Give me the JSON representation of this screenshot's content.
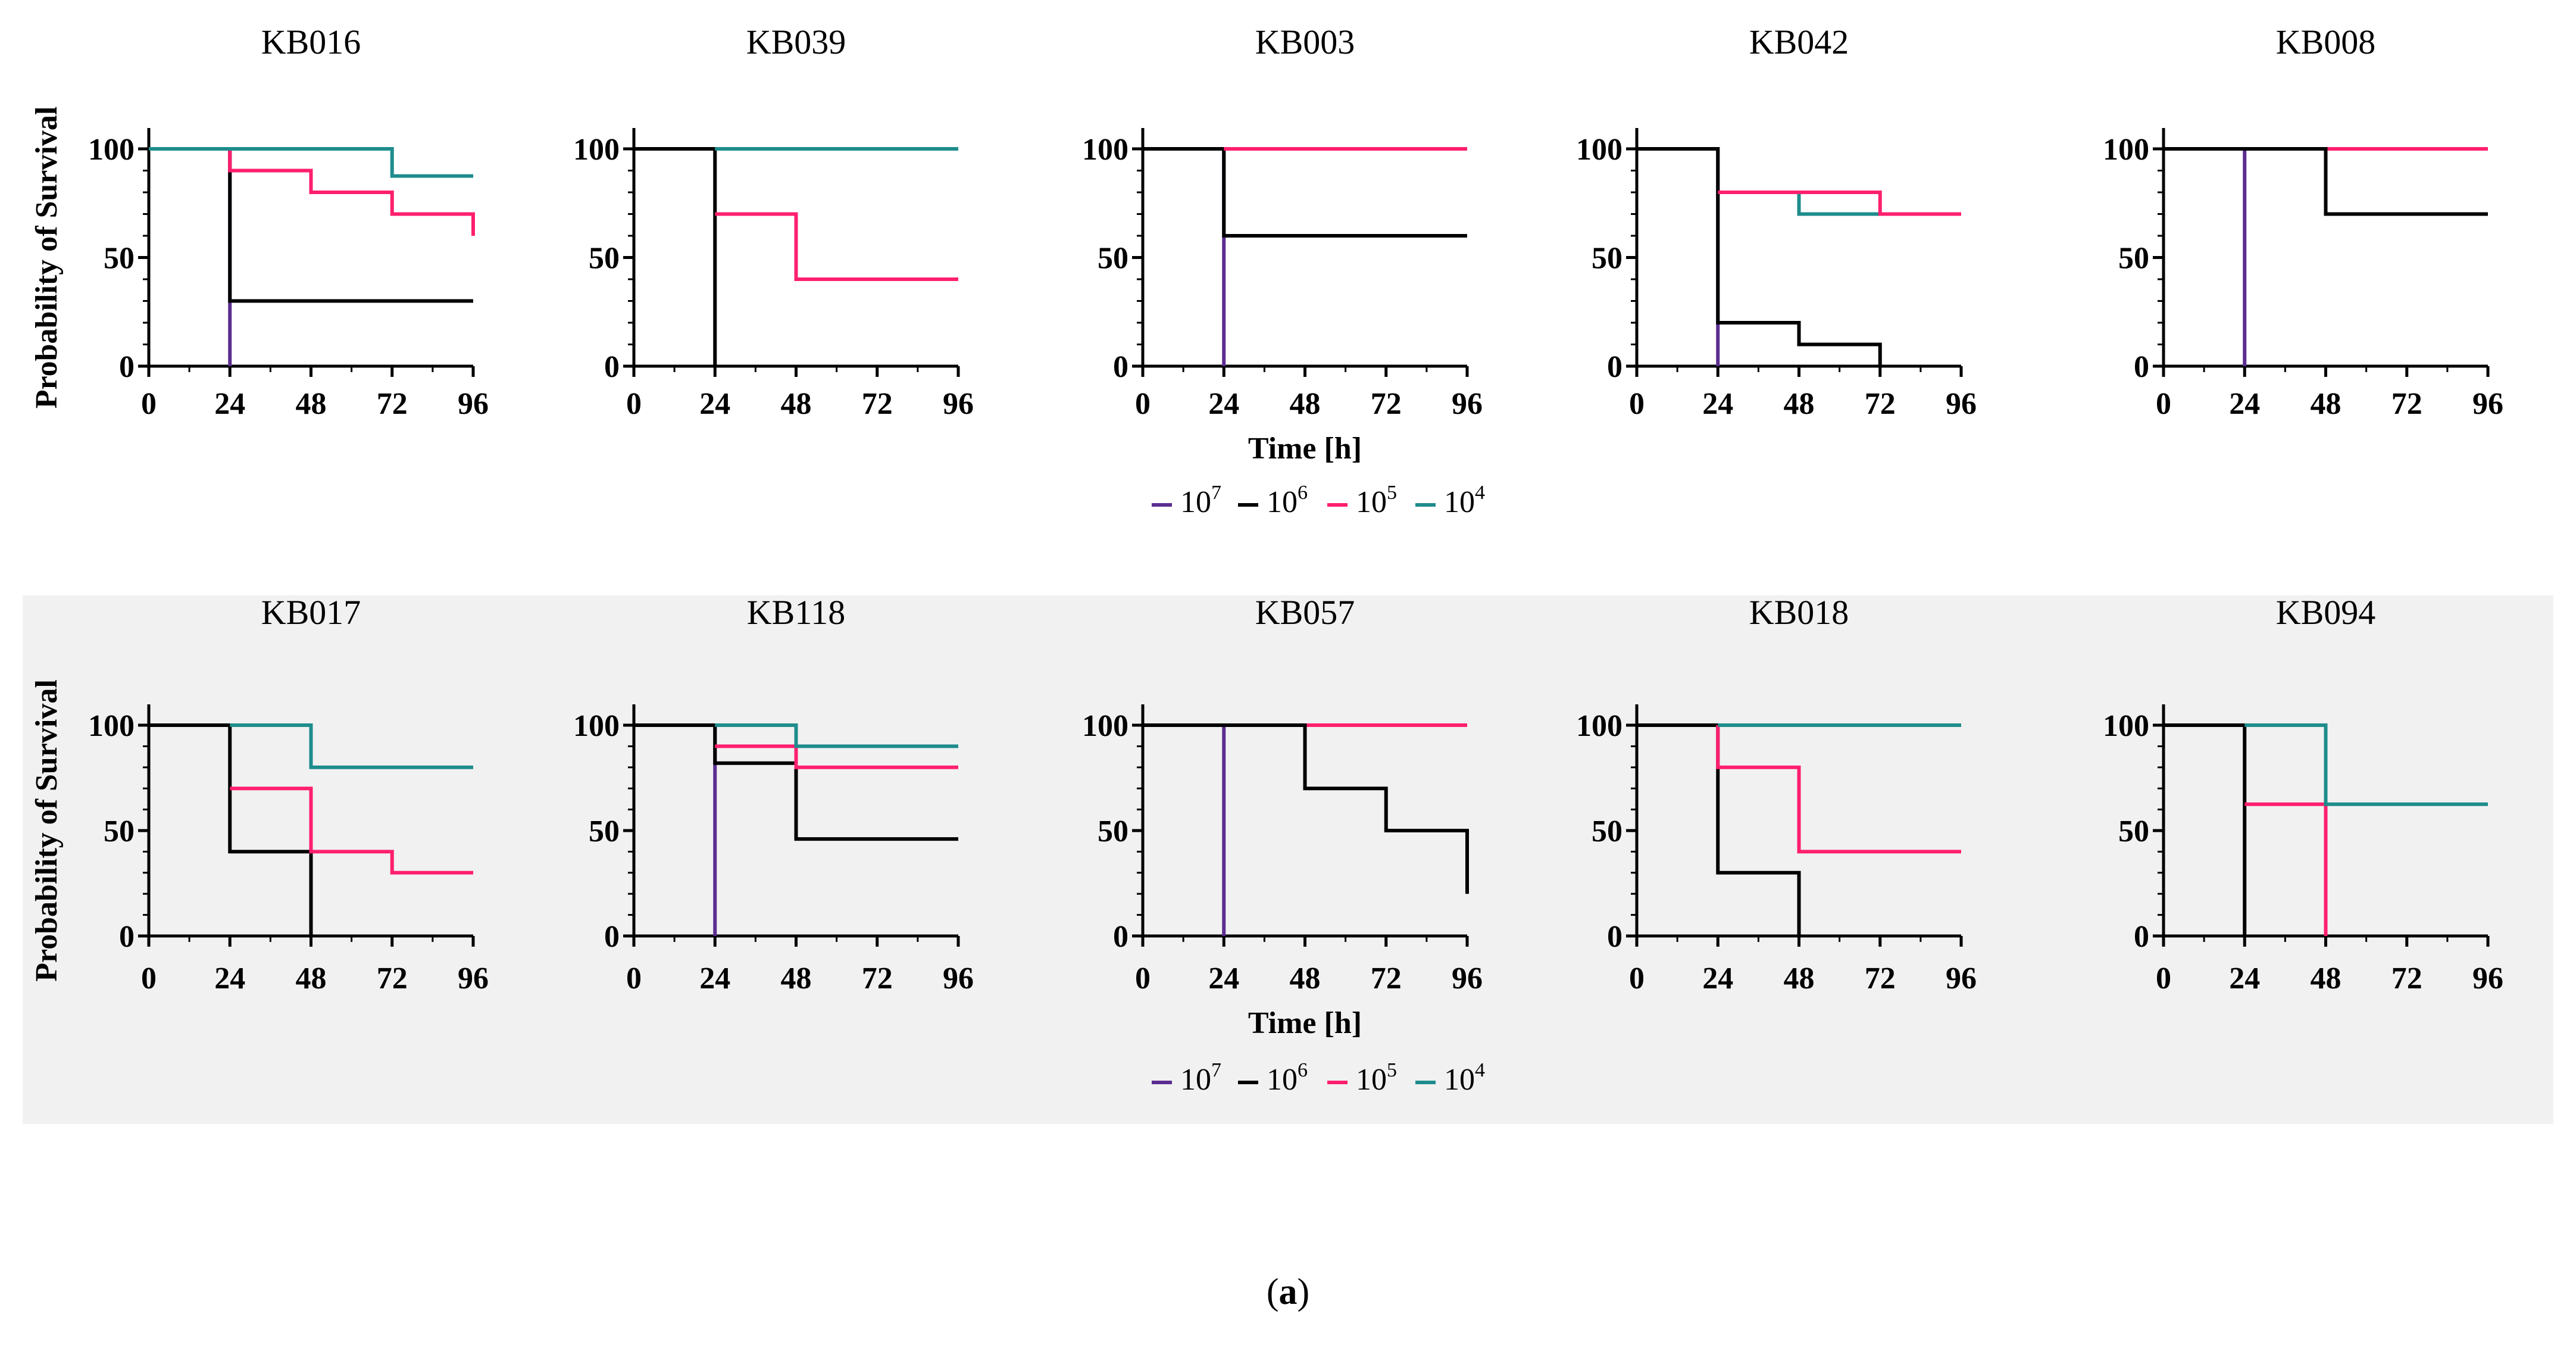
{
  "caption": {
    "open": "(",
    "letter": "a",
    "close": ")"
  },
  "series_styles": {
    "10^7": {
      "color": "#5b2d90"
    },
    "10^6": {
      "color": "#000000"
    },
    "10^5": {
      "color": "#ff1f6e"
    },
    "10^4": {
      "color": "#1e8c8c"
    }
  },
  "rows": [
    {
      "shaded": false,
      "y_axis_label": "Probability of Survival",
      "x_axis_label": "Time [h]",
      "legend": [
        {
          "key": "10^7",
          "base": "10",
          "exp": "7"
        },
        {
          "key": "10^6",
          "base": "10",
          "exp": "6"
        },
        {
          "key": "10^5",
          "base": "10",
          "exp": "5"
        },
        {
          "key": "10^4",
          "base": "10",
          "exp": "4"
        }
      ]
    },
    {
      "shaded": true,
      "y_axis_label": "Probability of Survival",
      "x_axis_label": "Time [h]",
      "legend": [
        {
          "key": "10^7",
          "base": "10",
          "exp": "7"
        },
        {
          "key": "10^6",
          "base": "10",
          "exp": "6"
        },
        {
          "key": "10^5",
          "base": "10",
          "exp": "5"
        },
        {
          "key": "10^4",
          "base": "10",
          "exp": "4"
        }
      ]
    }
  ],
  "chart_data": [
    {
      "type": "line",
      "title": "KB016",
      "xlim": [
        0,
        96
      ],
      "ylim": [
        0,
        100
      ],
      "x_ticks": [
        0,
        24,
        48,
        72,
        96
      ],
      "y_ticks": [
        0,
        50,
        100
      ],
      "series": [
        {
          "key": "10^7",
          "x": [
            0,
            24,
            24
          ],
          "y": [
            100,
            100,
            0
          ]
        },
        {
          "key": "10^6",
          "x": [
            0,
            24,
            24,
            96
          ],
          "y": [
            100,
            100,
            30,
            30
          ]
        },
        {
          "key": "10^5",
          "x": [
            0,
            24,
            24,
            48,
            48,
            72,
            72,
            96,
            96
          ],
          "y": [
            100,
            100,
            90,
            90,
            80,
            80,
            70,
            70,
            60
          ]
        },
        {
          "key": "10^4",
          "x": [
            0,
            72,
            72,
            96
          ],
          "y": [
            100,
            100,
            87.5,
            87.5
          ]
        }
      ]
    },
    {
      "type": "line",
      "title": "KB039",
      "xlim": [
        0,
        96
      ],
      "ylim": [
        0,
        100
      ],
      "x_ticks": [
        0,
        24,
        48,
        72,
        96
      ],
      "y_ticks": [
        0,
        50,
        100
      ],
      "series": [
        {
          "key": "10^6",
          "x": [
            0,
            24,
            24
          ],
          "y": [
            100,
            100,
            0
          ]
        },
        {
          "key": "10^5",
          "x": [
            24,
            48,
            48,
            96
          ],
          "y": [
            70,
            70,
            40,
            40
          ]
        },
        {
          "key": "10^4",
          "x": [
            24,
            96
          ],
          "y": [
            100,
            100
          ]
        }
      ]
    },
    {
      "type": "line",
      "title": "KB003",
      "xlim": [
        0,
        96
      ],
      "ylim": [
        0,
        100
      ],
      "x_ticks": [
        0,
        24,
        48,
        72,
        96
      ],
      "y_ticks": [
        0,
        50,
        100
      ],
      "series": [
        {
          "key": "10^7",
          "x": [
            0,
            24,
            24
          ],
          "y": [
            100,
            100,
            0
          ]
        },
        {
          "key": "10^6",
          "x": [
            0,
            24,
            24,
            96
          ],
          "y": [
            100,
            100,
            60,
            60
          ]
        },
        {
          "key": "10^5",
          "x": [
            24,
            96
          ],
          "y": [
            100,
            100
          ]
        }
      ]
    },
    {
      "type": "line",
      "title": "KB042",
      "xlim": [
        0,
        96
      ],
      "ylim": [
        0,
        100
      ],
      "x_ticks": [
        0,
        24,
        48,
        72,
        96
      ],
      "y_ticks": [
        0,
        50,
        100
      ],
      "series": [
        {
          "key": "10^7",
          "x": [
            0,
            24,
            24
          ],
          "y": [
            100,
            100,
            0
          ]
        },
        {
          "key": "10^6",
          "x": [
            0,
            24,
            24,
            48,
            48,
            72,
            72
          ],
          "y": [
            100,
            100,
            20,
            20,
            10,
            10,
            0
          ]
        },
        {
          "key": "10^4",
          "x": [
            24,
            48,
            48,
            96
          ],
          "y": [
            80,
            80,
            70,
            70
          ]
        },
        {
          "key": "10^5",
          "x": [
            24,
            72,
            72,
            96
          ],
          "y": [
            80,
            80,
            70,
            70
          ]
        }
      ]
    },
    {
      "type": "line",
      "title": "KB008",
      "xlim": [
        0,
        96
      ],
      "ylim": [
        0,
        100
      ],
      "x_ticks": [
        0,
        24,
        48,
        72,
        96
      ],
      "y_ticks": [
        0,
        50,
        100
      ],
      "series": [
        {
          "key": "10^7",
          "x": [
            0,
            24,
            24
          ],
          "y": [
            100,
            100,
            0
          ]
        },
        {
          "key": "10^5",
          "x": [
            48,
            96
          ],
          "y": [
            100,
            100
          ]
        },
        {
          "key": "10^6",
          "x": [
            0,
            48,
            48,
            96
          ],
          "y": [
            100,
            100,
            70,
            70
          ]
        }
      ]
    },
    {
      "type": "line",
      "title": "KB017",
      "xlim": [
        0,
        96
      ],
      "ylim": [
        0,
        100
      ],
      "x_ticks": [
        0,
        24,
        48,
        72,
        96
      ],
      "y_ticks": [
        0,
        50,
        100
      ],
      "series": [
        {
          "key": "10^6",
          "x": [
            0,
            24,
            24,
            48,
            48
          ],
          "y": [
            100,
            100,
            40,
            40,
            0
          ]
        },
        {
          "key": "10^5",
          "x": [
            24,
            48,
            48,
            72,
            72,
            96
          ],
          "y": [
            70,
            70,
            40,
            40,
            30,
            30
          ]
        },
        {
          "key": "10^4",
          "x": [
            24,
            48,
            48,
            96
          ],
          "y": [
            100,
            100,
            80,
            80
          ]
        }
      ]
    },
    {
      "type": "line",
      "title": "KB118",
      "xlim": [
        0,
        96
      ],
      "ylim": [
        0,
        100
      ],
      "x_ticks": [
        0,
        24,
        48,
        72,
        96
      ],
      "y_ticks": [
        0,
        50,
        100
      ],
      "series": [
        {
          "key": "10^7",
          "x": [
            0,
            24,
            24
          ],
          "y": [
            100,
            100,
            0
          ]
        },
        {
          "key": "10^6",
          "x": [
            0,
            24,
            24,
            48,
            48,
            96
          ],
          "y": [
            100,
            100,
            82,
            82,
            46,
            46
          ]
        },
        {
          "key": "10^5",
          "x": [
            24,
            48,
            48,
            96
          ],
          "y": [
            90,
            90,
            80,
            80
          ]
        },
        {
          "key": "10^4",
          "x": [
            24,
            48,
            48,
            96
          ],
          "y": [
            100,
            100,
            90,
            90
          ]
        }
      ]
    },
    {
      "type": "line",
      "title": "KB057",
      "xlim": [
        0,
        96
      ],
      "ylim": [
        0,
        100
      ],
      "x_ticks": [
        0,
        24,
        48,
        72,
        96
      ],
      "y_ticks": [
        0,
        50,
        100
      ],
      "series": [
        {
          "key": "10^7",
          "x": [
            0,
            24,
            24
          ],
          "y": [
            100,
            100,
            0
          ]
        },
        {
          "key": "10^5",
          "x": [
            48,
            96
          ],
          "y": [
            100,
            100
          ]
        },
        {
          "key": "10^6",
          "x": [
            0,
            48,
            48,
            72,
            72,
            96,
            96
          ],
          "y": [
            100,
            100,
            70,
            70,
            50,
            50,
            20
          ]
        }
      ]
    },
    {
      "type": "line",
      "title": "KB018",
      "xlim": [
        0,
        96
      ],
      "ylim": [
        0,
        100
      ],
      "x_ticks": [
        0,
        24,
        48,
        72,
        96
      ],
      "y_ticks": [
        0,
        50,
        100
      ],
      "series": [
        {
          "key": "10^6",
          "x": [
            0,
            24,
            24,
            48,
            48
          ],
          "y": [
            100,
            100,
            30,
            30,
            0
          ]
        },
        {
          "key": "10^5",
          "x": [
            24,
            24,
            48,
            48,
            96
          ],
          "y": [
            100,
            80,
            80,
            40,
            40
          ]
        },
        {
          "key": "10^4",
          "x": [
            24,
            96
          ],
          "y": [
            100,
            100
          ]
        }
      ]
    },
    {
      "type": "line",
      "title": "KB094",
      "xlim": [
        0,
        96
      ],
      "ylim": [
        0,
        100
      ],
      "x_ticks": [
        0,
        24,
        48,
        72,
        96
      ],
      "y_ticks": [
        0,
        50,
        100
      ],
      "series": [
        {
          "key": "10^6",
          "x": [
            0,
            24,
            24
          ],
          "y": [
            100,
            100,
            0
          ]
        },
        {
          "key": "10^5",
          "x": [
            24,
            48,
            48
          ],
          "y": [
            62.5,
            62.5,
            0
          ]
        },
        {
          "key": "10^4",
          "x": [
            24,
            48,
            48,
            96
          ],
          "y": [
            100,
            100,
            62.5,
            62.5
          ]
        }
      ]
    }
  ]
}
